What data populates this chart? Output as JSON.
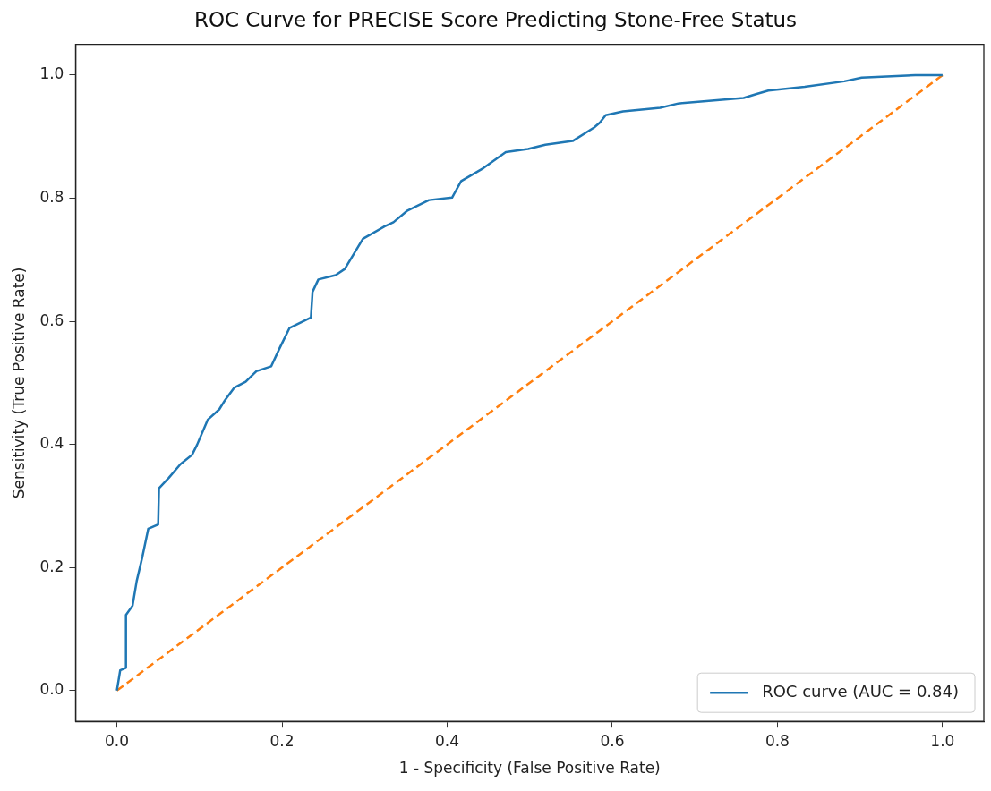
{
  "chart_data": {
    "type": "line",
    "title": "ROC Curve for PRECISE Score Predicting Stone-Free Status",
    "xlabel": "1 - Specificity (False Positive Rate)",
    "ylabel": "Sensitivity (True Positive Rate)",
    "xlim": [
      -0.05,
      1.05
    ],
    "ylim": [
      -0.05,
      1.05
    ],
    "xticks": [
      {
        "value": 0,
        "label": "0.0"
      },
      {
        "value": 0.2,
        "label": "0.2"
      },
      {
        "value": 0.4,
        "label": "0.4"
      },
      {
        "value": 0.6,
        "label": "0.6"
      },
      {
        "value": 0.8,
        "label": "0.8"
      },
      {
        "value": 1,
        "label": "1.0"
      }
    ],
    "yticks": [
      {
        "value": 0,
        "label": "0.0"
      },
      {
        "value": 0.2,
        "label": "0.2"
      },
      {
        "value": 0.4,
        "label": "0.4"
      },
      {
        "value": 0.6,
        "label": "0.6"
      },
      {
        "value": 0.8,
        "label": "0.8"
      },
      {
        "value": 1,
        "label": "1.0"
      }
    ],
    "grid": false,
    "legend": "bottom right",
    "marker": "none",
    "series": [
      {
        "name": "ROC curve (AUC = 0.84)",
        "color": "#1f77b4",
        "line_style": "solid",
        "x": [
          0,
          0.004,
          0.011,
          0.011,
          0.019,
          0.024,
          0.031,
          0.038,
          0.05,
          0.051,
          0.063,
          0.077,
          0.091,
          0.097,
          0.11,
          0.124,
          0.131,
          0.142,
          0.156,
          0.169,
          0.187,
          0.197,
          0.209,
          0.235,
          0.237,
          0.244,
          0.265,
          0.276,
          0.298,
          0.324,
          0.335,
          0.352,
          0.378,
          0.406,
          0.417,
          0.444,
          0.471,
          0.498,
          0.519,
          0.552,
          0.578,
          0.585,
          0.592,
          0.613,
          0.658,
          0.68,
          0.759,
          0.774,
          0.789,
          0.833,
          0.881,
          0.902,
          0.967,
          1.0
        ],
        "values": [
          0,
          0.033,
          0.037,
          0.123,
          0.138,
          0.178,
          0.218,
          0.263,
          0.27,
          0.329,
          0.346,
          0.368,
          0.383,
          0.399,
          0.44,
          0.457,
          0.472,
          0.492,
          0.502,
          0.519,
          0.527,
          0.556,
          0.589,
          0.606,
          0.648,
          0.668,
          0.675,
          0.685,
          0.734,
          0.754,
          0.761,
          0.78,
          0.797,
          0.801,
          0.828,
          0.849,
          0.875,
          0.88,
          0.887,
          0.893,
          0.915,
          0.923,
          0.935,
          0.941,
          0.947,
          0.954,
          0.963,
          0.969,
          0.975,
          0.981,
          0.99,
          0.996,
          1.0,
          1.0
        ]
      },
      {
        "color": "#ff7f0e",
        "line_style": "dashed",
        "x": [
          0,
          1
        ],
        "values": [
          0,
          1
        ]
      }
    ]
  }
}
